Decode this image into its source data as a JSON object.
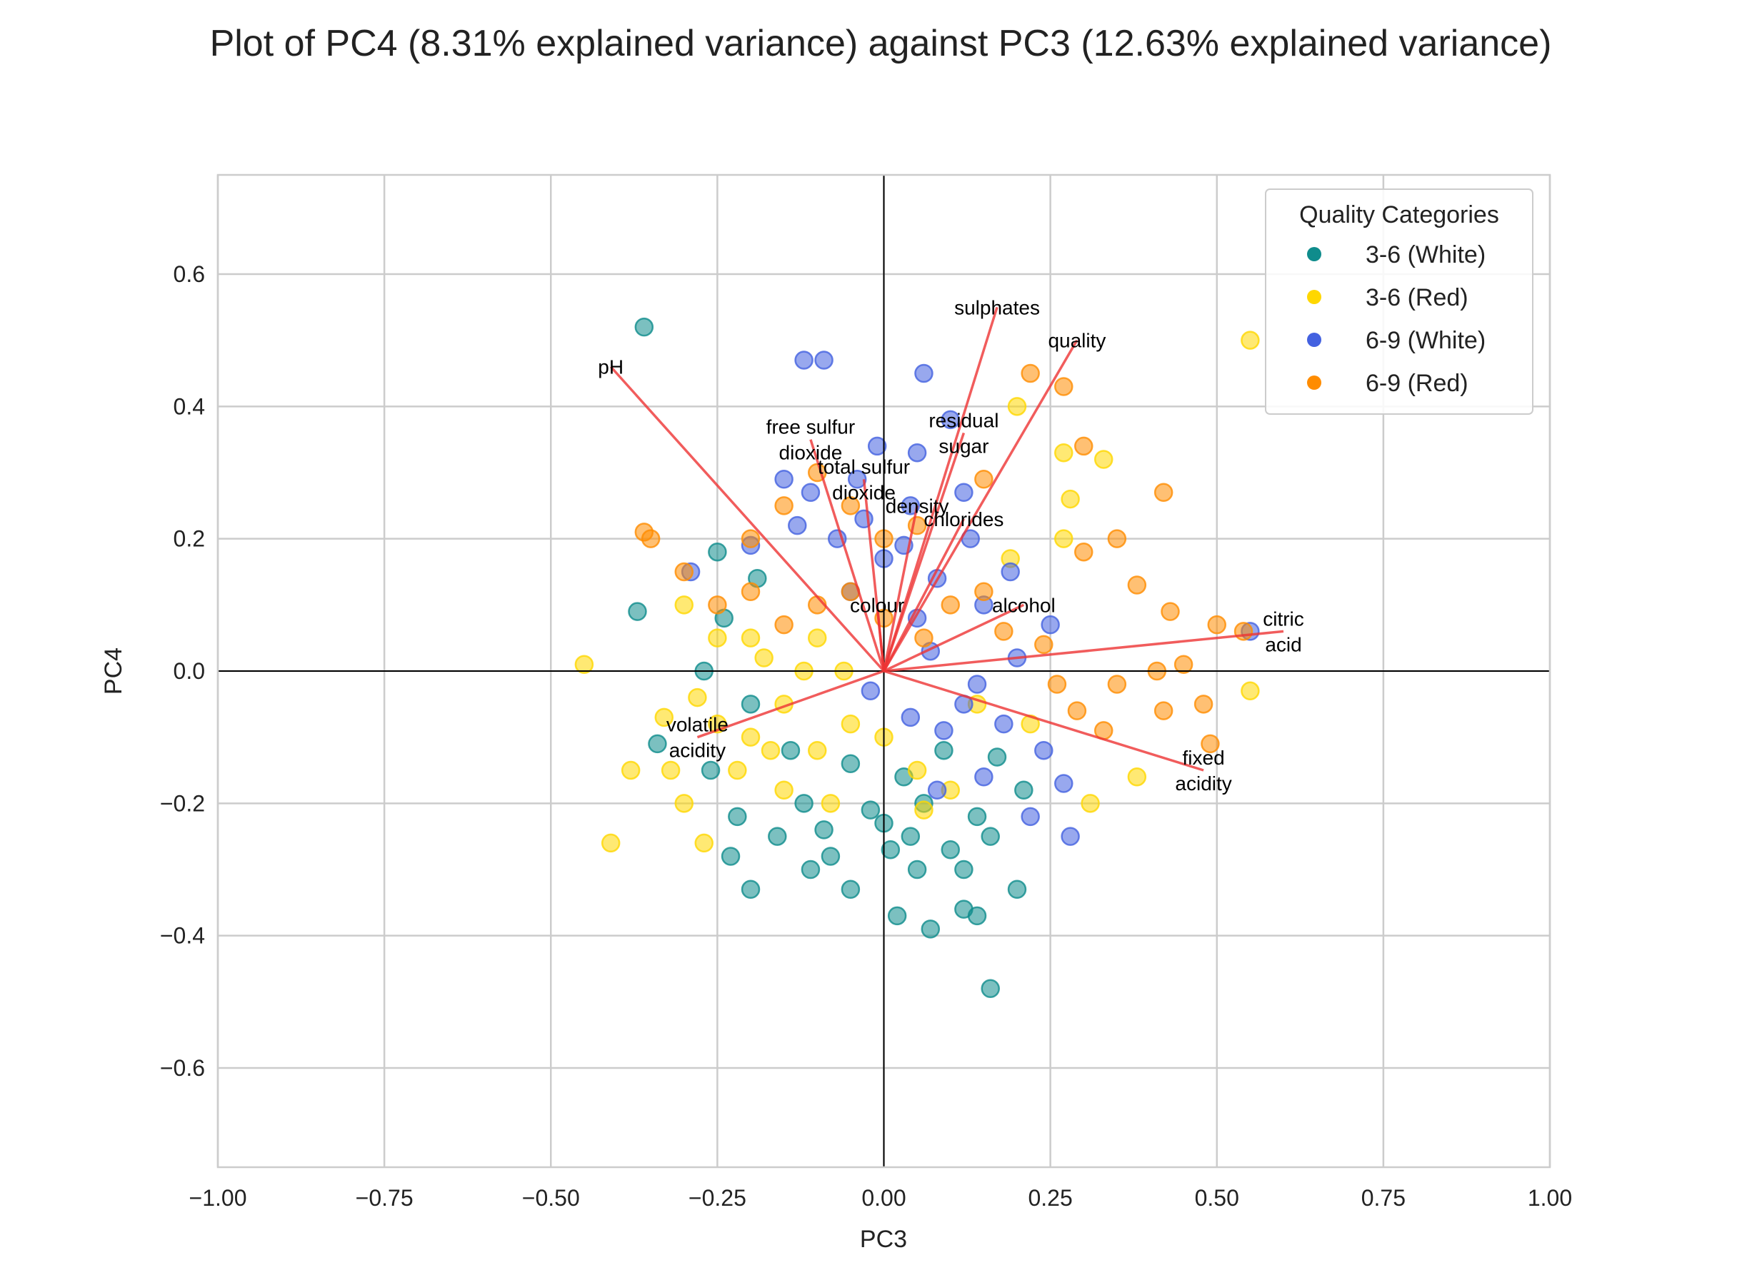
{
  "chart_data": {
    "type": "scatter",
    "title": "Plot of PC4 (8.31% explained variance) against PC3 (12.63% explained variance)",
    "xlabel": "PC3",
    "ylabel": "PC4",
    "xlim": [
      -1.0,
      1.0
    ],
    "ylim": [
      -0.75,
      0.75
    ],
    "x_ticks": [
      -1.0,
      -0.75,
      -0.5,
      -0.25,
      0.0,
      0.25,
      0.5,
      0.75,
      1.0
    ],
    "x_tick_labels": [
      "−1.00",
      "−0.75",
      "−0.50",
      "−0.25",
      "0.00",
      "0.25",
      "0.50",
      "0.75",
      "1.00"
    ],
    "y_ticks": [
      -0.6,
      -0.4,
      -0.2,
      0.0,
      0.2,
      0.4,
      0.6
    ],
    "y_tick_labels": [
      "−0.6",
      "−0.4",
      "−0.2",
      "0.0",
      "0.2",
      "0.4",
      "0.6"
    ],
    "grid": true,
    "legend": {
      "title": "Quality Categories",
      "position": "top-right",
      "entries": [
        "3-6 (White)",
        "3-6 (Red)",
        "6-9 (White)",
        "6-9 (Red)"
      ]
    },
    "series": [
      {
        "name": "3-6 (White)",
        "color": "#0f8c8c",
        "points": [
          [
            -0.36,
            0.52
          ],
          [
            0.16,
            -0.48
          ],
          [
            -0.37,
            0.09
          ],
          [
            -0.34,
            -0.11
          ],
          [
            -0.23,
            -0.28
          ],
          [
            -0.2,
            -0.33
          ],
          [
            -0.11,
            -0.3
          ],
          [
            -0.05,
            -0.33
          ],
          [
            0.02,
            -0.37
          ],
          [
            0.07,
            -0.39
          ],
          [
            0.14,
            -0.37
          ],
          [
            0.2,
            -0.33
          ],
          [
            0.12,
            -0.36
          ],
          [
            0.05,
            -0.3
          ],
          [
            -0.16,
            -0.25
          ],
          [
            -0.08,
            -0.28
          ],
          [
            0.0,
            -0.23
          ],
          [
            0.04,
            -0.25
          ],
          [
            0.1,
            -0.27
          ],
          [
            0.16,
            -0.25
          ],
          [
            -0.22,
            -0.22
          ],
          [
            -0.12,
            -0.2
          ],
          [
            -0.02,
            -0.21
          ],
          [
            0.06,
            -0.2
          ],
          [
            0.14,
            -0.22
          ],
          [
            0.21,
            -0.18
          ],
          [
            -0.26,
            -0.15
          ],
          [
            -0.14,
            -0.12
          ],
          [
            -0.05,
            -0.14
          ],
          [
            0.03,
            -0.16
          ],
          [
            0.09,
            -0.12
          ],
          [
            0.17,
            -0.13
          ],
          [
            -0.25,
            0.18
          ],
          [
            -0.24,
            0.08
          ],
          [
            -0.19,
            0.14
          ],
          [
            -0.27,
            0.0
          ],
          [
            -0.2,
            -0.05
          ],
          [
            0.01,
            -0.27
          ],
          [
            -0.09,
            -0.24
          ],
          [
            0.12,
            -0.3
          ]
        ]
      },
      {
        "name": "3-6 (Red)",
        "color": "#ffd700",
        "points": [
          [
            0.55,
            0.5
          ],
          [
            -0.45,
            0.01
          ],
          [
            -0.41,
            -0.26
          ],
          [
            -0.38,
            -0.15
          ],
          [
            0.55,
            -0.03
          ],
          [
            0.2,
            0.4
          ],
          [
            0.33,
            0.32
          ],
          [
            0.27,
            0.33
          ],
          [
            0.27,
            0.2
          ],
          [
            0.31,
            -0.2
          ],
          [
            0.38,
            -0.16
          ],
          [
            -0.32,
            -0.15
          ],
          [
            -0.3,
            -0.2
          ],
          [
            -0.27,
            -0.26
          ],
          [
            -0.33,
            -0.07
          ],
          [
            -0.28,
            -0.04
          ],
          [
            -0.25,
            0.05
          ],
          [
            -0.3,
            0.1
          ],
          [
            -0.2,
            -0.1
          ],
          [
            -0.15,
            -0.05
          ],
          [
            -0.1,
            -0.12
          ],
          [
            -0.05,
            -0.08
          ],
          [
            -0.18,
            0.02
          ],
          [
            -0.12,
            0.0
          ],
          [
            -0.22,
            -0.15
          ],
          [
            -0.08,
            -0.2
          ],
          [
            0.0,
            -0.1
          ],
          [
            0.05,
            -0.15
          ],
          [
            0.14,
            -0.05
          ],
          [
            0.1,
            -0.18
          ],
          [
            0.22,
            -0.08
          ],
          [
            0.19,
            0.17
          ],
          [
            0.28,
            0.26
          ],
          [
            -0.15,
            -0.18
          ],
          [
            -0.25,
            -0.08
          ],
          [
            -0.2,
            0.05
          ],
          [
            -0.06,
            0.0
          ],
          [
            -0.1,
            0.05
          ],
          [
            -0.17,
            -0.12
          ],
          [
            0.06,
            -0.21
          ]
        ]
      },
      {
        "name": "6-9 (White)",
        "color": "#4361e0",
        "points": [
          [
            0.55,
            0.06
          ],
          [
            0.06,
            0.45
          ],
          [
            -0.12,
            0.47
          ],
          [
            -0.09,
            0.47
          ],
          [
            -0.01,
            0.34
          ],
          [
            0.1,
            0.38
          ],
          [
            0.05,
            0.33
          ],
          [
            -0.15,
            0.29
          ],
          [
            -0.11,
            0.27
          ],
          [
            -0.04,
            0.29
          ],
          [
            0.04,
            0.25
          ],
          [
            0.12,
            0.27
          ],
          [
            -0.07,
            0.2
          ],
          [
            0.0,
            0.17
          ],
          [
            0.08,
            0.14
          ],
          [
            -0.05,
            0.12
          ],
          [
            0.05,
            0.08
          ],
          [
            0.15,
            0.1
          ],
          [
            0.2,
            0.02
          ],
          [
            0.28,
            -0.25
          ],
          [
            0.27,
            -0.17
          ],
          [
            0.22,
            -0.22
          ],
          [
            0.15,
            -0.16
          ],
          [
            0.08,
            -0.18
          ],
          [
            0.12,
            -0.05
          ],
          [
            0.04,
            -0.07
          ],
          [
            -0.02,
            -0.03
          ],
          [
            0.09,
            -0.09
          ],
          [
            0.18,
            -0.08
          ],
          [
            0.24,
            -0.12
          ],
          [
            -0.29,
            0.15
          ],
          [
            -0.2,
            0.19
          ],
          [
            -0.13,
            0.22
          ],
          [
            -0.03,
            0.23
          ],
          [
            0.03,
            0.19
          ],
          [
            0.13,
            0.2
          ],
          [
            0.19,
            0.15
          ],
          [
            0.07,
            0.03
          ],
          [
            0.14,
            -0.02
          ],
          [
            0.25,
            0.07
          ]
        ]
      },
      {
        "name": "6-9 (Red)",
        "color": "#ff8c00",
        "points": [
          [
            0.22,
            0.45
          ],
          [
            0.27,
            0.43
          ],
          [
            0.3,
            0.34
          ],
          [
            0.42,
            0.27
          ],
          [
            0.35,
            0.2
          ],
          [
            0.3,
            0.18
          ],
          [
            0.38,
            0.13
          ],
          [
            0.43,
            0.09
          ],
          [
            0.5,
            0.07
          ],
          [
            0.54,
            0.06
          ],
          [
            0.49,
            -0.11
          ],
          [
            0.48,
            -0.05
          ],
          [
            0.45,
            0.01
          ],
          [
            0.41,
            0.0
          ],
          [
            0.35,
            -0.02
          ],
          [
            0.42,
            -0.06
          ],
          [
            0.33,
            -0.09
          ],
          [
            0.29,
            -0.06
          ],
          [
            0.26,
            -0.02
          ],
          [
            0.24,
            0.04
          ],
          [
            0.18,
            0.06
          ],
          [
            0.15,
            0.12
          ],
          [
            0.1,
            0.1
          ],
          [
            0.06,
            0.05
          ],
          [
            0.0,
            0.08
          ],
          [
            -0.05,
            0.12
          ],
          [
            -0.1,
            0.1
          ],
          [
            -0.15,
            0.07
          ],
          [
            -0.2,
            0.12
          ],
          [
            -0.25,
            0.1
          ],
          [
            -0.3,
            0.15
          ],
          [
            -0.36,
            0.21
          ],
          [
            -0.35,
            0.2
          ],
          [
            -0.2,
            0.2
          ],
          [
            -0.15,
            0.25
          ],
          [
            -0.1,
            0.3
          ],
          [
            -0.05,
            0.25
          ],
          [
            0.0,
            0.2
          ],
          [
            0.05,
            0.22
          ],
          [
            0.15,
            0.29
          ]
        ]
      }
    ],
    "loadings": [
      {
        "label": "pH",
        "x": -0.41,
        "y": 0.46,
        "label_lines": [
          "pH"
        ]
      },
      {
        "label": "free sulfur dioxide",
        "x": -0.11,
        "y": 0.35,
        "label_lines": [
          "free sulfur",
          "dioxide"
        ]
      },
      {
        "label": "total sulfur dioxide",
        "x": -0.03,
        "y": 0.29,
        "label_lines": [
          "total sulfur",
          "dioxide"
        ]
      },
      {
        "label": "sulphates",
        "x": 0.17,
        "y": 0.55,
        "label_lines": [
          "sulphates"
        ]
      },
      {
        "label": "quality",
        "x": 0.29,
        "y": 0.5,
        "label_lines": [
          "quality"
        ]
      },
      {
        "label": "residual sugar",
        "x": 0.12,
        "y": 0.36,
        "label_lines": [
          "residual",
          "sugar"
        ]
      },
      {
        "label": "density",
        "x": 0.05,
        "y": 0.25,
        "label_lines": [
          "density"
        ]
      },
      {
        "label": "chlorides",
        "x": 0.12,
        "y": 0.23,
        "label_lines": [
          "chlorides"
        ]
      },
      {
        "label": "colour",
        "x": -0.01,
        "y": 0.1,
        "label_lines": [
          "colour"
        ]
      },
      {
        "label": "alcohol",
        "x": 0.21,
        "y": 0.1,
        "label_lines": [
          "alcohol"
        ]
      },
      {
        "label": "citric acid",
        "x": 0.6,
        "y": 0.06,
        "label_lines": [
          "citric",
          "acid"
        ]
      },
      {
        "label": "volatile acidity",
        "x": -0.28,
        "y": -0.1,
        "label_lines": [
          "volatile",
          "acidity"
        ]
      },
      {
        "label": "fixed acidity",
        "x": 0.48,
        "y": -0.15,
        "label_lines": [
          "fixed",
          "acidity"
        ]
      }
    ]
  },
  "colors": {
    "arrow": "#ee3333",
    "grid": "#cccccc",
    "axis_line": "#000000",
    "text": "#222222"
  }
}
